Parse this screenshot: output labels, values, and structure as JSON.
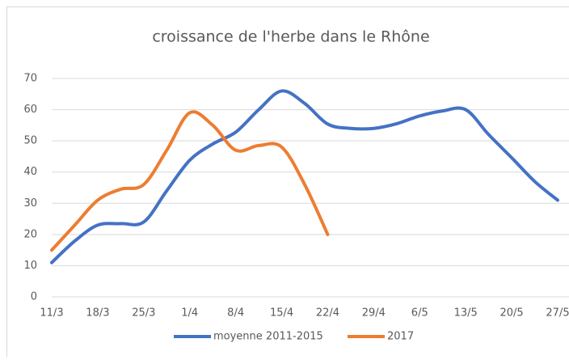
{
  "chart_data": {
    "type": "line",
    "title": "croissance de l'herbe dans le Rhône",
    "categories": [
      "11/3",
      null,
      "18/3",
      null,
      "25/3",
      null,
      "1/4",
      null,
      "8/4",
      null,
      "15/4",
      null,
      "22/4",
      null,
      "29/4",
      null,
      "6/5",
      null,
      "13/5",
      null,
      "20/5",
      null,
      "27/5"
    ],
    "series": [
      {
        "name": "moyenne 2011-2015",
        "color": "#4472c4",
        "values": [
          11,
          17.9,
          23,
          23.5,
          24,
          34,
          43.8,
          49,
          52.8,
          60,
          66,
          62,
          55.4,
          54,
          54,
          55.5,
          58,
          59.6,
          60,
          52,
          44.6,
          37,
          31
        ]
      },
      {
        "name": "2017",
        "color": "#ed7d31",
        "values": [
          15,
          23,
          31,
          34.5,
          36,
          47,
          59,
          55,
          47,
          48.5,
          48,
          36,
          20,
          null,
          null,
          null,
          null,
          null,
          null,
          null,
          null,
          null,
          null
        ]
      }
    ],
    "ylim": [
      0,
      70
    ],
    "yticks": [
      0,
      10,
      20,
      30,
      40,
      50,
      60,
      70
    ],
    "grid": true,
    "legend": "bottom"
  }
}
